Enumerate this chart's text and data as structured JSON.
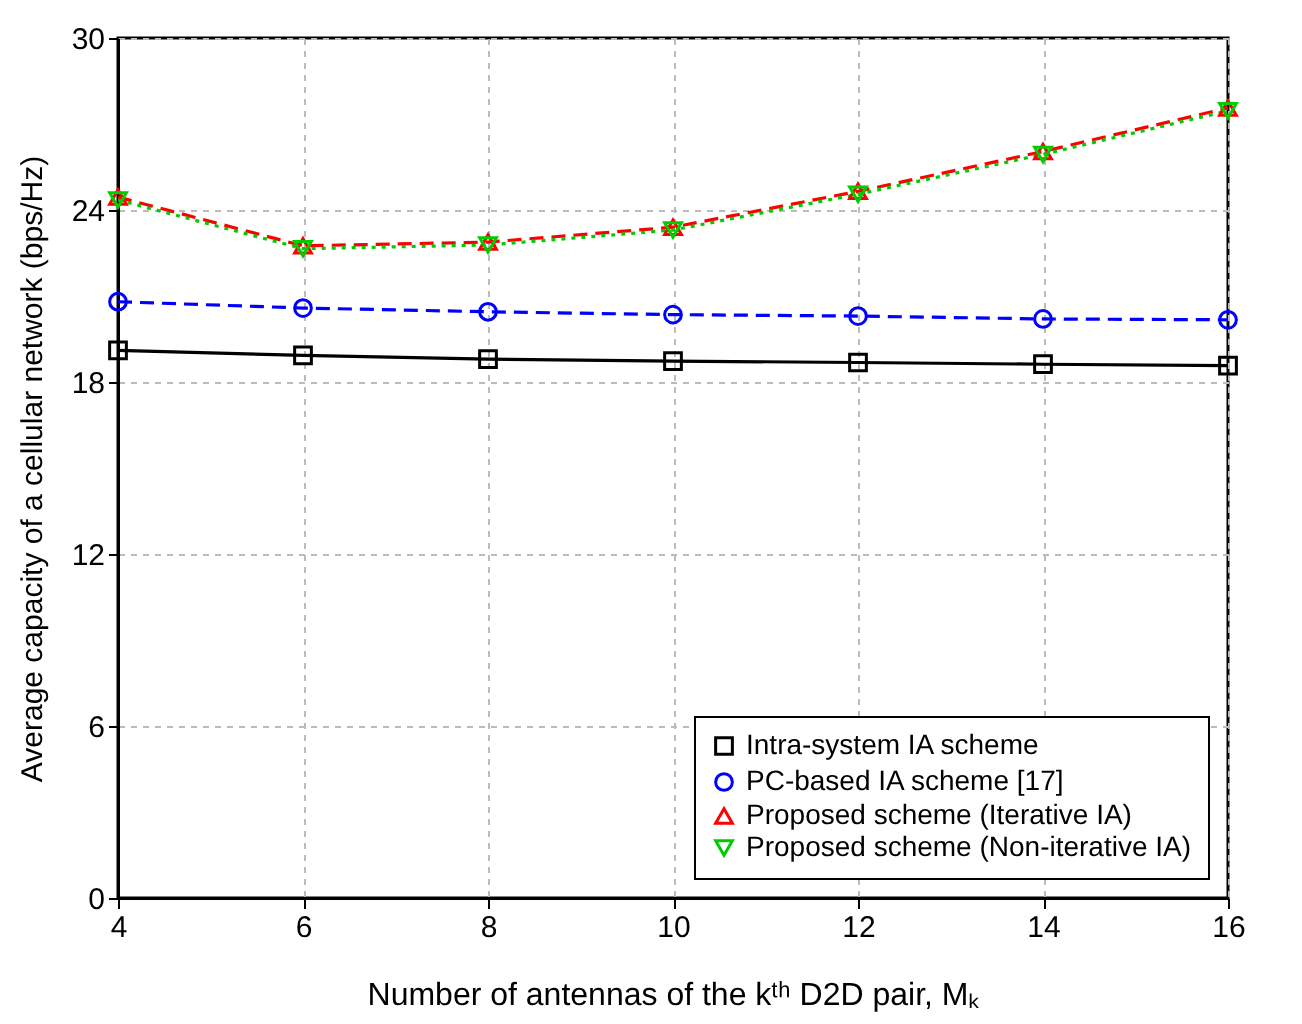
{
  "chart_data": {
    "type": "line",
    "xlabel": "Number of antennas of the kᵗʰ D2D pair, Mₖ",
    "ylabel": "Average capacity of a cellular network (bps/Hz)",
    "x": [
      4,
      6,
      8,
      10,
      12,
      14,
      16
    ],
    "series": [
      {
        "name": "Intra-system IA scheme",
        "color": "#000000",
        "marker": "square",
        "line_style": "solid",
        "values": [
          19.1,
          18.93,
          18.8,
          18.73,
          18.68,
          18.62,
          18.57
        ]
      },
      {
        "name": "PC-based IA scheme [17]",
        "color": "#0000ff",
        "marker": "circle",
        "line_style": "dashed",
        "values": [
          20.8,
          20.58,
          20.45,
          20.35,
          20.3,
          20.2,
          20.17
        ]
      },
      {
        "name": "Proposed scheme (Iterative IA)",
        "color": "#ff0000",
        "marker": "triangle",
        "line_style": "dashed",
        "values": [
          24.45,
          22.75,
          22.88,
          23.4,
          24.65,
          26.04,
          27.56
        ]
      },
      {
        "name": "Proposed scheme (Non-iterative IA)",
        "color": "#00cc00",
        "marker": "triangle-down",
        "line_style": "dotted",
        "values": [
          24.35,
          22.65,
          22.78,
          23.3,
          24.55,
          25.94,
          27.46
        ]
      }
    ],
    "xlim": [
      4,
      16
    ],
    "xticks": [
      4,
      6,
      8,
      10,
      12,
      14,
      16
    ],
    "ylim": [
      0,
      30
    ],
    "yticks": [
      0,
      6,
      12,
      18,
      24,
      30
    ],
    "grid": true,
    "legend": "bottom right"
  }
}
